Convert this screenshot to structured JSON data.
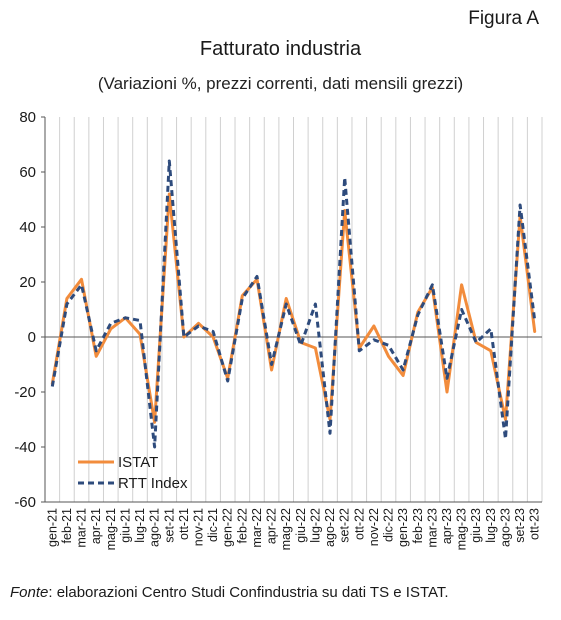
{
  "figure_label": "Figura A",
  "source": {
    "prefix": "Fonte",
    "text": ": elaborazioni Centro Studi Confindustria su dati TS e ISTAT."
  },
  "colors": {
    "istat": "#F28C3C",
    "rtt": "#2E4B7C",
    "grid": "#d0d0d0",
    "axis": "#555555"
  },
  "chart_data": {
    "type": "line",
    "title": "Fatturato industria",
    "subtitle": "(Variazioni %, prezzi correnti, dati mensili grezzi)",
    "ylim": [
      -60,
      80
    ],
    "yticks": [
      -60,
      -40,
      -20,
      0,
      20,
      40,
      60,
      80
    ],
    "grid": "vertical",
    "legend_position": "bottom-left",
    "categories": [
      "gen-21",
      "feb-21",
      "mar-21",
      "apr-21",
      "mag-21",
      "giu-21",
      "lug-21",
      "ago-21",
      "set-21",
      "ott-21",
      "nov-21",
      "dic-21",
      "gen-22",
      "feb-22",
      "mar-22",
      "apr-22",
      "mag-22",
      "giu-22",
      "lug-22",
      "ago-22",
      "set-22",
      "ott-22",
      "nov-22",
      "dic-22",
      "gen-23",
      "feb-23",
      "mar-23",
      "apr-23",
      "mag-23",
      "giu-23",
      "lug-23",
      "ago-23",
      "set-23",
      "ott-23"
    ],
    "series": [
      {
        "name": "ISTAT",
        "style": "solid",
        "values": [
          -17,
          14,
          21,
          -7,
          3,
          7,
          1,
          -31,
          52,
          0,
          5,
          0,
          -15,
          15,
          21,
          -12,
          14,
          -2,
          -4,
          -30,
          46,
          -4,
          4,
          -7,
          -14,
          9,
          18,
          -20,
          19,
          -2,
          -5,
          -30,
          44,
          2
        ]
      },
      {
        "name": "RTT Index",
        "style": "dashed",
        "values": [
          -18,
          12,
          19,
          -5,
          5,
          7,
          6,
          -40,
          64,
          0,
          4,
          2,
          -16,
          14,
          22,
          -10,
          12,
          -3,
          12,
          -35,
          58,
          -5,
          -1,
          -3,
          -12,
          8,
          19,
          -15,
          10,
          -2,
          3,
          -37,
          48,
          6
        ]
      }
    ]
  }
}
